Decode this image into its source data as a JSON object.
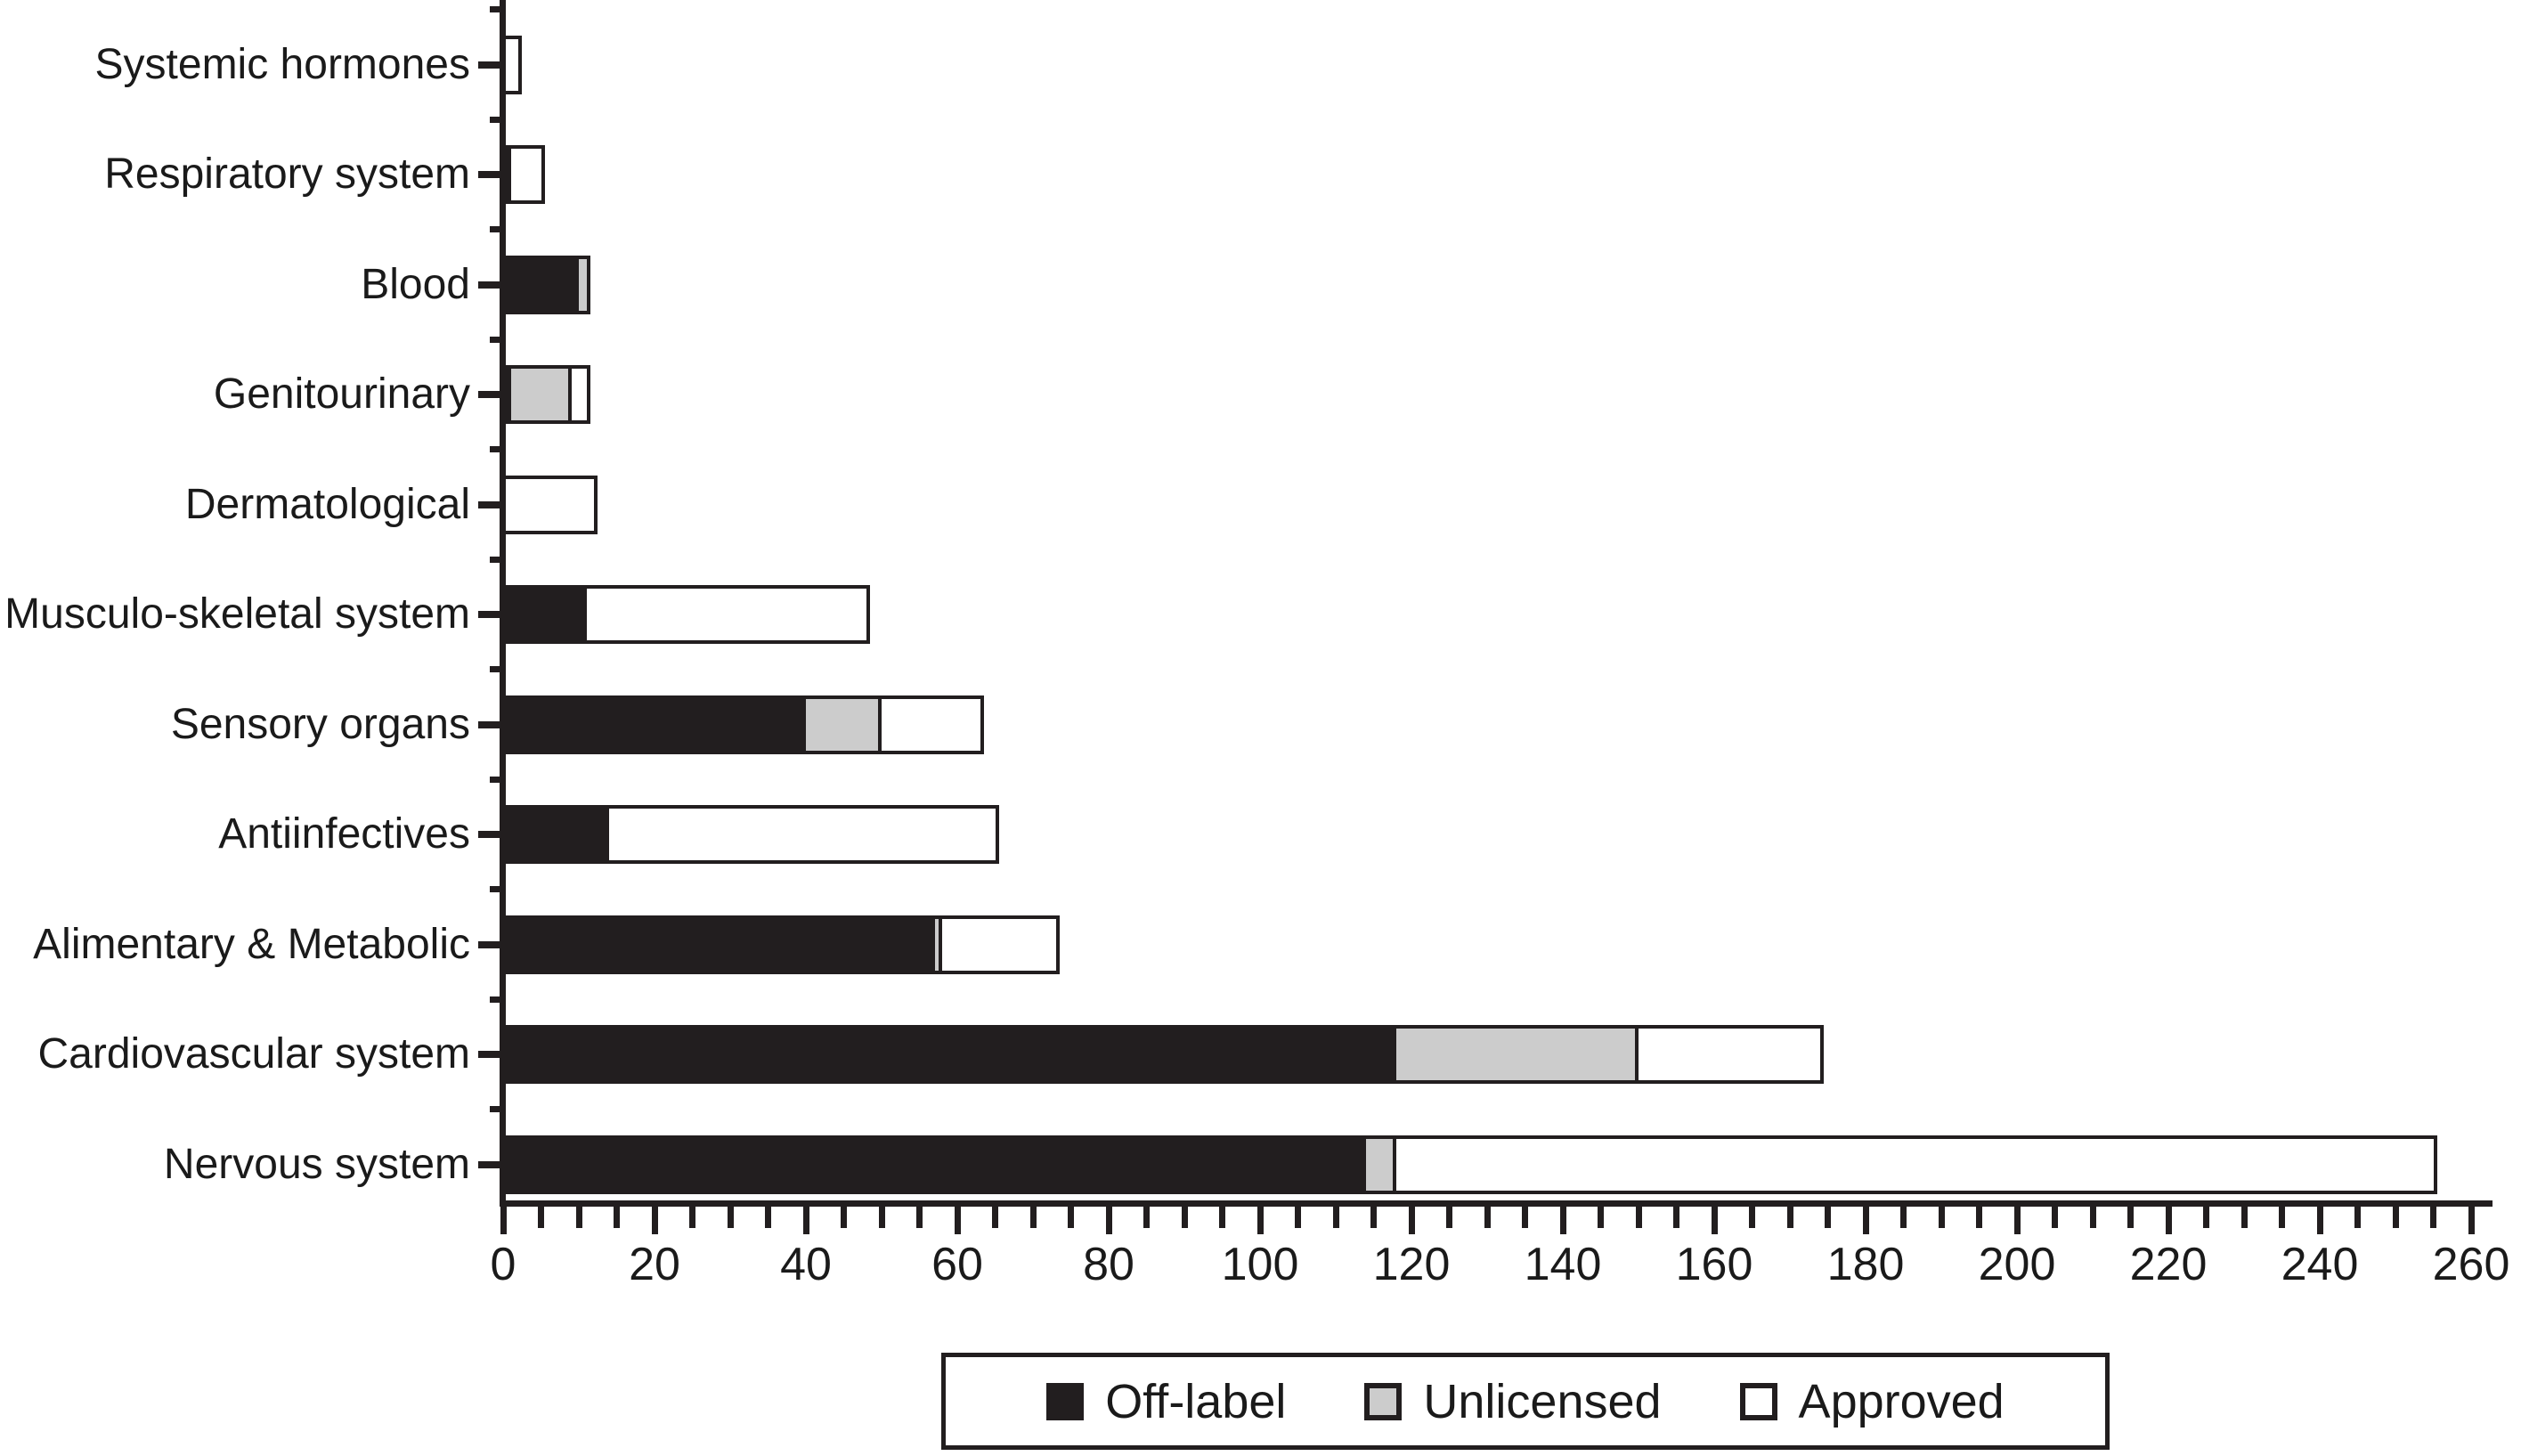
{
  "colors": {
    "off_label": "#221e1f",
    "unlicensed": "#cccccc",
    "approved": "#ffffff",
    "outline": "#221e1f",
    "background": "#ffffff",
    "text": "#1a1a1a"
  },
  "legend": {
    "items": [
      {
        "label": "Off-label",
        "swatch": "off_label"
      },
      {
        "label": "Unlicensed",
        "swatch": "unlicensed"
      },
      {
        "label": "Approved",
        "swatch": "approved"
      }
    ]
  },
  "x_axis": {
    "min": 0,
    "max": 260,
    "minor_step": 5,
    "major_step": 20,
    "tick_labels": [
      "0",
      "20",
      "40",
      "60",
      "80",
      "100",
      "120",
      "140",
      "160",
      "180",
      "200",
      "220",
      "240",
      "260"
    ]
  },
  "chart_data": {
    "type": "bar",
    "orientation": "horizontal",
    "stacked": true,
    "grid": false,
    "legend_position": "bottom",
    "xlim": [
      0,
      260
    ],
    "categories": [
      "Systemic hormones",
      "Respiratory system",
      "Blood",
      "Genitourinary",
      "Dermatological",
      "Musculo-skeletal system",
      "Sensory organs",
      "Antiinfectives",
      "Alimentary & Metabolic",
      "Cardiovascular system",
      "Nervous system"
    ],
    "series": [
      {
        "name": "Off-label",
        "color_key": "off_label",
        "values": [
          0,
          1,
          10,
          1,
          0,
          11,
          40,
          14,
          57,
          118,
          114
        ]
      },
      {
        "name": "Unlicensed",
        "color_key": "unlicensed",
        "values": [
          0,
          0,
          1,
          8,
          0,
          0,
          10,
          0,
          1,
          32,
          4
        ]
      },
      {
        "name": "Approved",
        "color_key": "approved",
        "values": [
          2,
          4,
          0,
          2,
          12,
          37,
          13,
          51,
          15,
          24,
          137
        ]
      }
    ]
  }
}
